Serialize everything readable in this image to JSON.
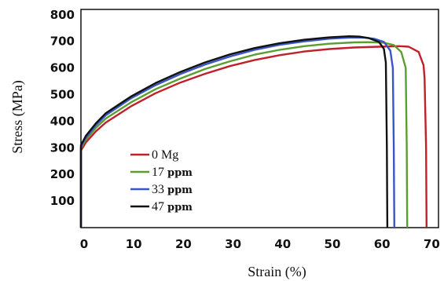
{
  "chart_data": {
    "type": "line",
    "xlabel": "Strain (%)",
    "ylabel": "Stress (MPa)",
    "xlim": [
      0,
      72
    ],
    "ylim": [
      0,
      820
    ],
    "x_ticks": [
      "0",
      "10",
      "20",
      "30",
      "40",
      "50",
      "60",
      "70"
    ],
    "y_ticks": [
      "100",
      "200",
      "300",
      "400",
      "500",
      "600",
      "700",
      "800"
    ],
    "grid": false,
    "legend_position": "lower-left",
    "series": [
      {
        "name": "0 Mg",
        "name_number": "0",
        "name_unit": "Mg",
        "color": "#c0202a",
        "points": [
          [
            0,
            0
          ],
          [
            0,
            290
          ],
          [
            1,
            320
          ],
          [
            3,
            362
          ],
          [
            5,
            395
          ],
          [
            10,
            455
          ],
          [
            15,
            505
          ],
          [
            20,
            545
          ],
          [
            25,
            578
          ],
          [
            30,
            607
          ],
          [
            35,
            630
          ],
          [
            40,
            648
          ],
          [
            45,
            662
          ],
          [
            50,
            671
          ],
          [
            55,
            677
          ],
          [
            60,
            680
          ],
          [
            64,
            682
          ],
          [
            66,
            680
          ],
          [
            68,
            660
          ],
          [
            69,
            610
          ],
          [
            69.2,
            560
          ],
          [
            69.5,
            300
          ],
          [
            69.6,
            0
          ]
        ]
      },
      {
        "name": "17 ppm",
        "name_number": "17",
        "name_unit": "ppm",
        "color": "#5a9e2f",
        "points": [
          [
            0,
            0
          ],
          [
            0,
            300
          ],
          [
            1,
            330
          ],
          [
            3,
            375
          ],
          [
            5,
            410
          ],
          [
            10,
            470
          ],
          [
            15,
            520
          ],
          [
            20,
            560
          ],
          [
            25,
            596
          ],
          [
            30,
            625
          ],
          [
            35,
            650
          ],
          [
            40,
            668
          ],
          [
            45,
            682
          ],
          [
            50,
            691
          ],
          [
            55,
            696
          ],
          [
            58,
            697
          ],
          [
            61,
            695
          ],
          [
            63,
            686
          ],
          [
            64.5,
            660
          ],
          [
            65.4,
            600
          ],
          [
            65.6,
            300
          ],
          [
            65.7,
            0
          ]
        ]
      },
      {
        "name": "33 ppm",
        "name_number": "33",
        "name_unit": "ppm",
        "color": "#3a56c4",
        "points": [
          [
            0,
            0
          ],
          [
            0,
            305
          ],
          [
            1,
            338
          ],
          [
            3,
            385
          ],
          [
            5,
            422
          ],
          [
            10,
            485
          ],
          [
            15,
            535
          ],
          [
            20,
            577
          ],
          [
            25,
            613
          ],
          [
            30,
            643
          ],
          [
            35,
            668
          ],
          [
            40,
            687
          ],
          [
            45,
            700
          ],
          [
            50,
            710
          ],
          [
            54,
            714
          ],
          [
            57,
            714
          ],
          [
            59,
            710
          ],
          [
            61,
            698
          ],
          [
            62.3,
            665
          ],
          [
            62.8,
            600
          ],
          [
            63,
            300
          ],
          [
            63.1,
            0
          ]
        ]
      },
      {
        "name": "47 ppm",
        "name_number": "47",
        "name_unit": "ppm",
        "color": "#111111",
        "points": [
          [
            0,
            0
          ],
          [
            0,
            310
          ],
          [
            1,
            345
          ],
          [
            3,
            392
          ],
          [
            5,
            430
          ],
          [
            10,
            492
          ],
          [
            15,
            543
          ],
          [
            20,
            585
          ],
          [
            25,
            621
          ],
          [
            30,
            651
          ],
          [
            35,
            675
          ],
          [
            40,
            693
          ],
          [
            45,
            706
          ],
          [
            50,
            715
          ],
          [
            54,
            719
          ],
          [
            56,
            718
          ],
          [
            58,
            712
          ],
          [
            60,
            698
          ],
          [
            61,
            672
          ],
          [
            61.4,
            620
          ],
          [
            61.6,
            300
          ],
          [
            61.7,
            0
          ]
        ]
      }
    ]
  }
}
